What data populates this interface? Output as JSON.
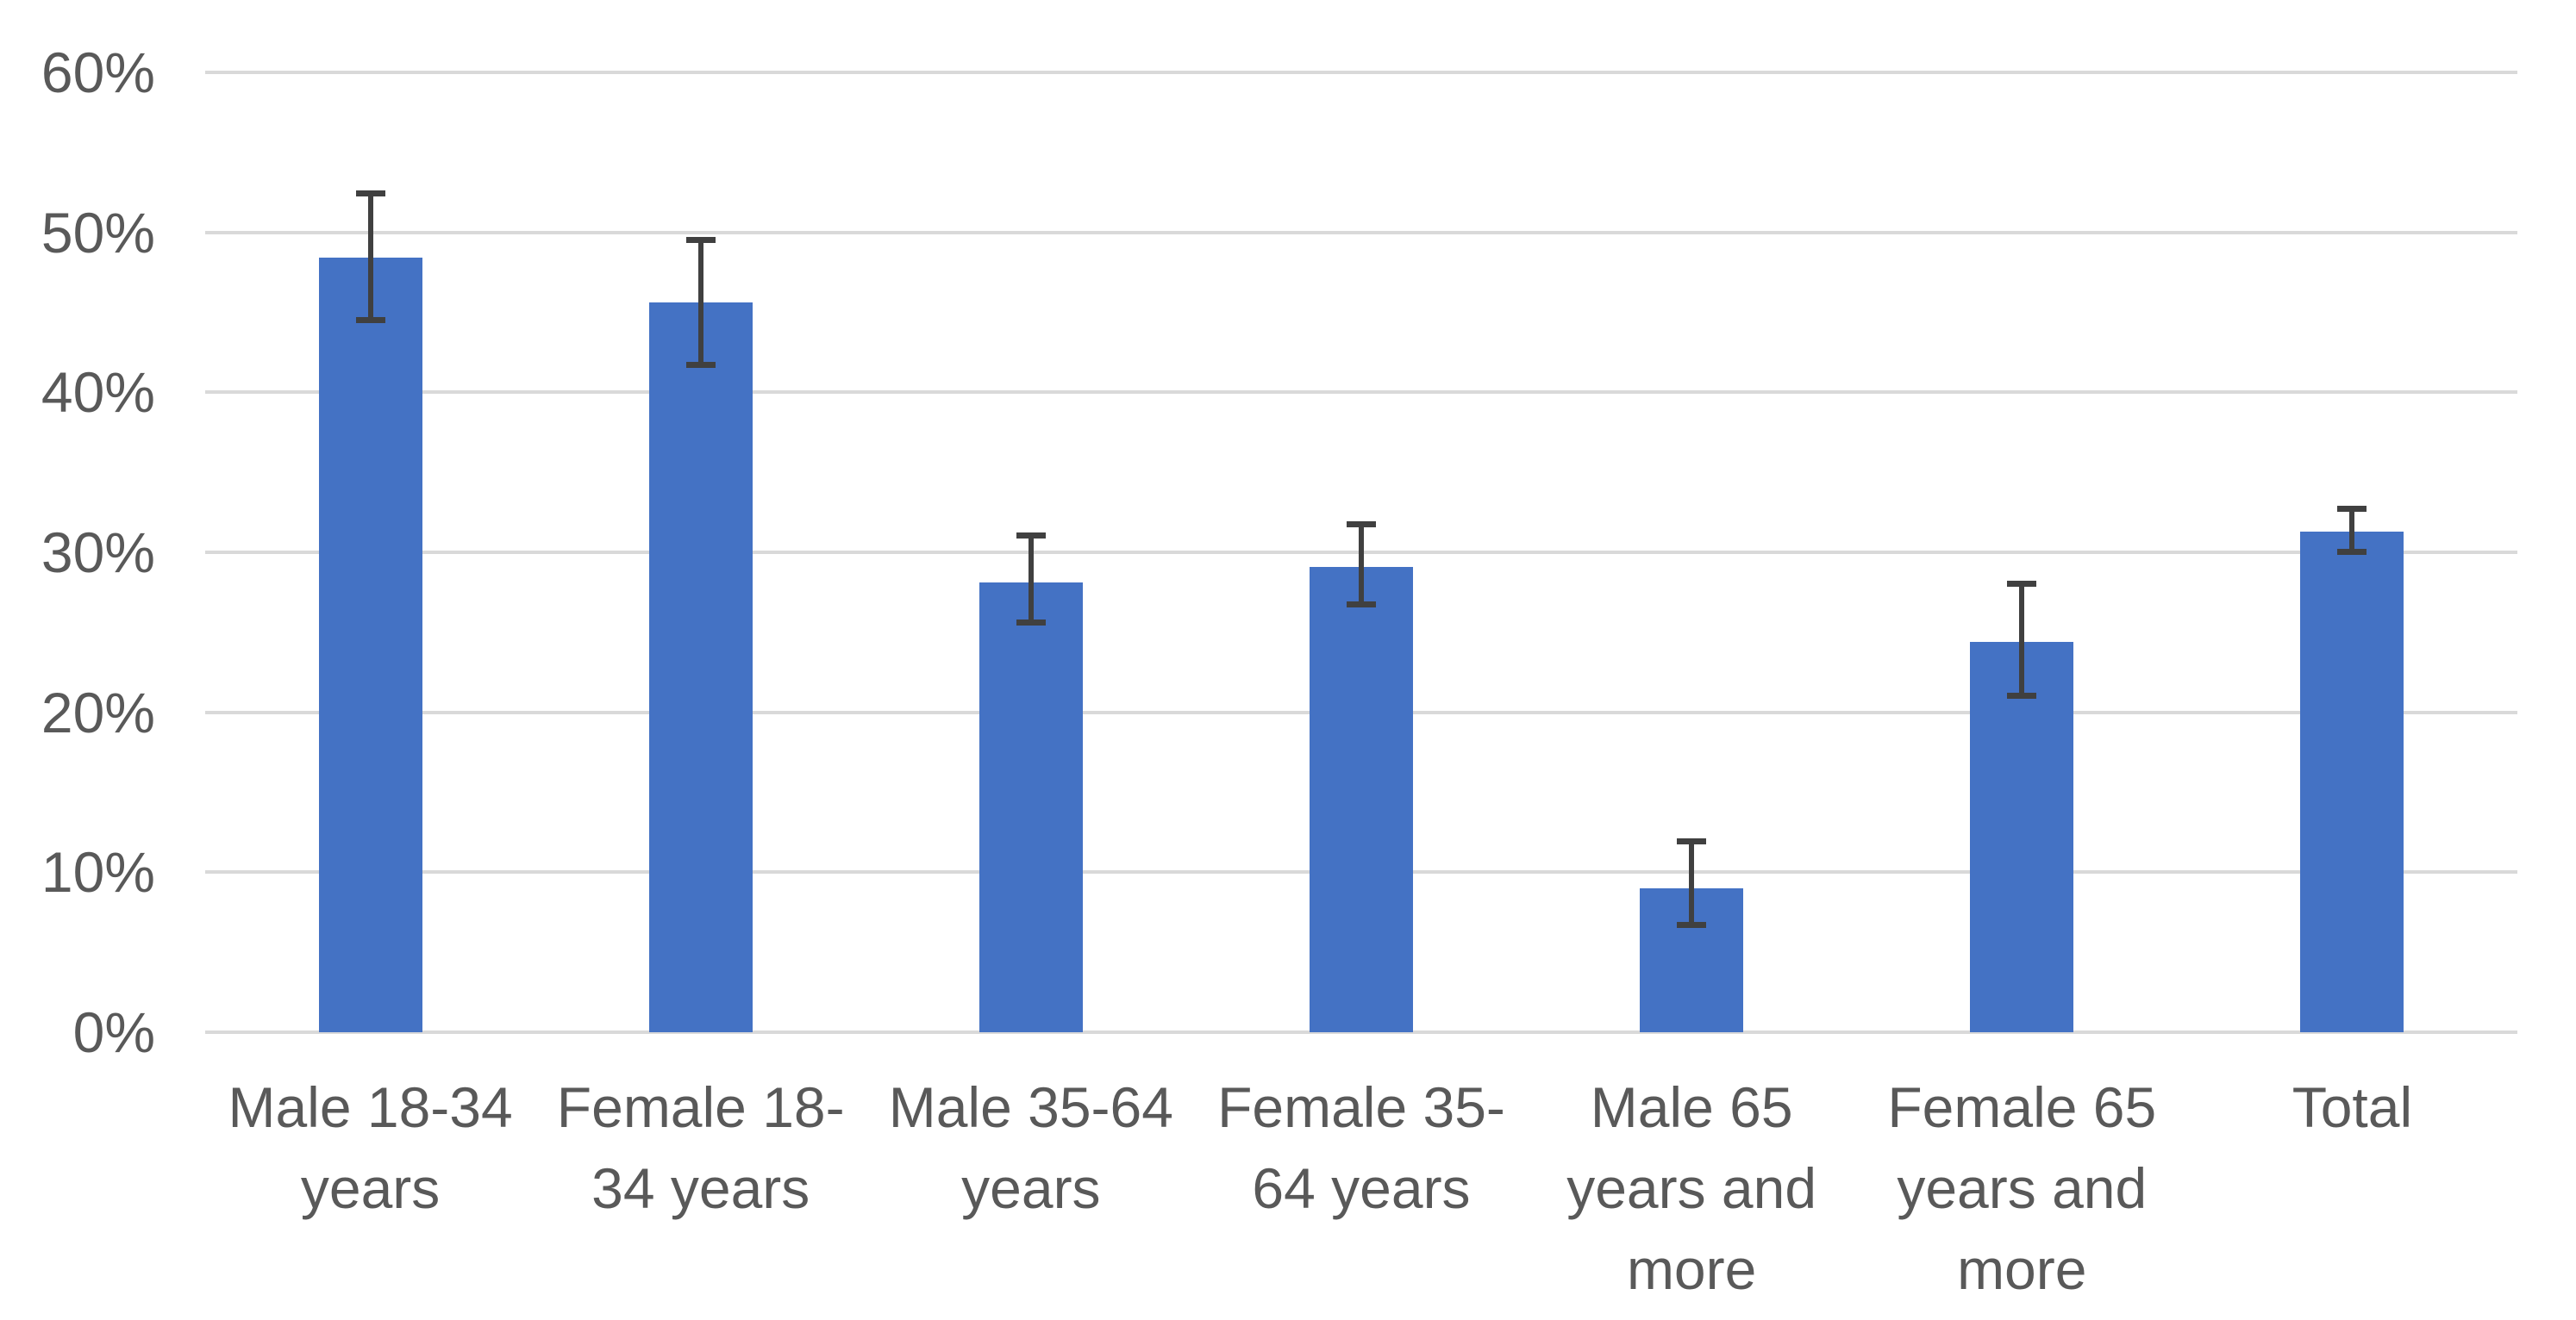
{
  "chart_data": {
    "type": "bar",
    "title": "",
    "xlabel": "",
    "ylabel": "",
    "categories": [
      "Male 18-34 years",
      "Female 18-34 years",
      "Male 35-64 years",
      "Female 35-64 years",
      "Male 65 years and more",
      "Female 65 years and more",
      "Total"
    ],
    "categories_wrapped": [
      [
        "Male 18-34",
        "years"
      ],
      [
        "Female 18-",
        "34 years"
      ],
      [
        "Male 35-64",
        "years"
      ],
      [
        "Female 35-",
        "64 years"
      ],
      [
        "Male 65",
        "years and",
        "more"
      ],
      [
        "Female 65",
        "years and",
        "more"
      ],
      [
        "Total"
      ]
    ],
    "values": [
      48.4,
      45.6,
      28.1,
      29.1,
      9.0,
      24.4,
      31.3
    ],
    "error_low": [
      44.5,
      41.7,
      25.6,
      26.7,
      6.7,
      21.0,
      30.0
    ],
    "error_high": [
      52.4,
      49.5,
      31.0,
      31.7,
      11.9,
      28.0,
      32.7
    ],
    "ylim": [
      0,
      60
    ],
    "ytick_step": 10,
    "ytick_labels": [
      "0%",
      "10%",
      "20%",
      "30%",
      "40%",
      "50%",
      "60%"
    ],
    "grid": true,
    "legend": false,
    "colors": {
      "bar": "#4472C4",
      "error_bar": "#404040",
      "gridline": "#D9D9D9",
      "axis_text": "#595959",
      "background": "#FFFFFF"
    }
  }
}
